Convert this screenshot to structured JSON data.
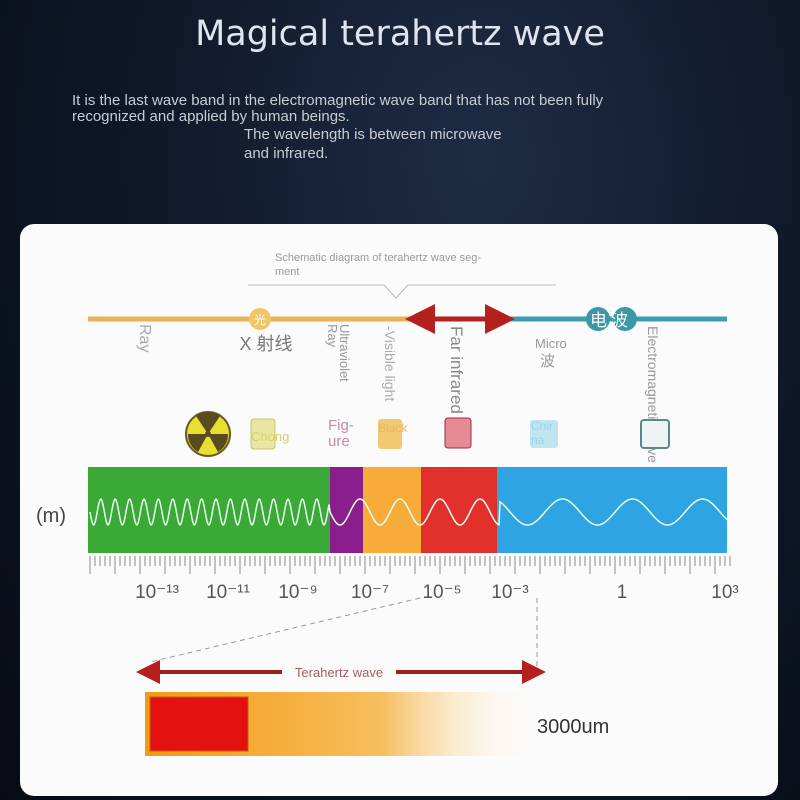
{
  "title": "Magical terahertz wave",
  "intro": {
    "line1": "It is the last wave band in the electromagnetic wave band that has not been fully",
    "line2": "recognized and applied by human beings.",
    "line3": "The wavelength is between microwave",
    "line4": "and infrared."
  },
  "diagram": {
    "heading1": "Schematic diagram of terahertz wave seg-",
    "heading2": "ment",
    "badge_left": "光",
    "badge_right": "电波",
    "labels": {
      "ray": "Ray",
      "xray": "X 射线",
      "uv1": "Ultraviolet",
      "uv2": "Ray",
      "visible": "-Visible light",
      "far_ir": "Far infrared",
      "micro1": "Micro",
      "micro2": "波",
      "em": "Electromagnetic wave"
    },
    "icon_labels": {
      "chong": "Chong",
      "figure1": "Fig-",
      "figure2": "ure",
      "black": "Black",
      "chip1": "Chir",
      "chip2": "na"
    },
    "unit": "(m)",
    "axis_ticks": [
      "10⁻¹³",
      "10⁻¹¹",
      "10⁻⁹",
      "10⁻⁷",
      "10⁻⁵",
      "10⁻³",
      "1",
      "10³"
    ],
    "band_colors": {
      "gamma": "#3aa935",
      "uv": "#8a1e8c",
      "visible": "#f7ac3a",
      "infrared": "#e2312d",
      "radio": "#2ea4e2"
    },
    "terahertz_label": "Terahertz wave",
    "range_end": "3000um"
  }
}
